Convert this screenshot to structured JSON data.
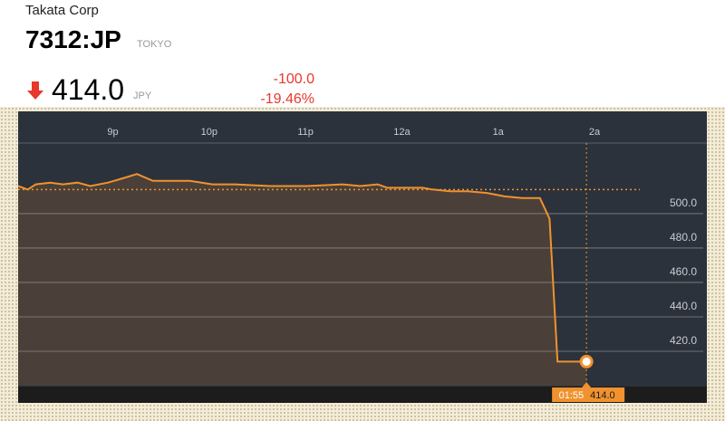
{
  "header": {
    "company": "Takata Corp",
    "ticker": "7312:JP",
    "exchange": "TOKYO",
    "price": "414.0",
    "currency": "JPY",
    "change": "-100.0",
    "change_pct": "-19.46%"
  },
  "chart_data": {
    "type": "line",
    "color": "#f0922e",
    "fill": "#4a4039",
    "x": [
      "20:01",
      "20:07",
      "20:12",
      "20:21",
      "20:29",
      "20:38",
      "20:46",
      "20:57",
      "21:08",
      "21:15",
      "21:25",
      "21:48",
      "22:02",
      "22:16",
      "22:38",
      "23:01",
      "23:23",
      "23:34",
      "23:45",
      "23:51",
      "00:13",
      "00:19",
      "00:30",
      "00:41",
      "00:53",
      "01:04",
      "01:15",
      "01:26",
      "01:32",
      "01:37",
      "01:55"
    ],
    "values": [
      516,
      514,
      517,
      518,
      517,
      518,
      516,
      518,
      521,
      523,
      519,
      519,
      517,
      517,
      516,
      516,
      517,
      516,
      517,
      515,
      515,
      514,
      513,
      513,
      512,
      510,
      509,
      509,
      497,
      414,
      414
    ],
    "previous_close": 514,
    "xlim": [
      "20:01",
      "03:10"
    ],
    "xticks": [
      {
        "value": "21:00",
        "label": "9p"
      },
      {
        "value": "22:00",
        "label": "10p"
      },
      {
        "value": "23:00",
        "label": "11p"
      },
      {
        "value": "00:00",
        "label": "12a"
      },
      {
        "value": "01:00",
        "label": "1a"
      },
      {
        "value": "02:00",
        "label": "2a"
      }
    ],
    "ylim": [
      400,
      541
    ],
    "yticks": [
      {
        "value": 420,
        "label": "420.0"
      },
      {
        "value": 440,
        "label": "440.0"
      },
      {
        "value": 460,
        "label": "460.0"
      },
      {
        "value": 480,
        "label": "480.0"
      },
      {
        "value": 500,
        "label": "500.0"
      }
    ],
    "grid": true
  }
}
